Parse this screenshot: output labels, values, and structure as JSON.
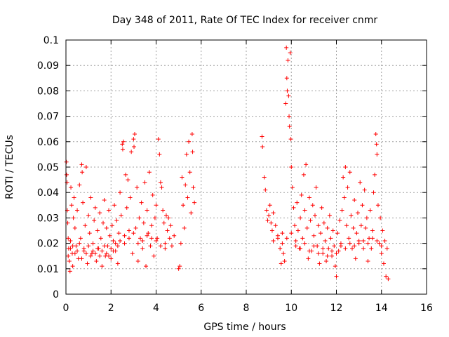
{
  "chart_data": {
    "type": "scatter",
    "title": "Day 348 of 2011, Rate Of TEC Index for receiver cnmr",
    "xlabel": "GPS time / hours",
    "ylabel": "ROTI / TECUs",
    "xlim": [
      0,
      16
    ],
    "ylim": [
      0,
      0.1
    ],
    "grid": true,
    "marker": "+",
    "marker_color": "#ff0000",
    "x_ticks": [
      0,
      2,
      4,
      6,
      8,
      10,
      12,
      14,
      16
    ],
    "x_tick_labels": [
      "0",
      "2",
      "4",
      "6",
      "8",
      "10",
      "12",
      "14",
      "16"
    ],
    "y_ticks": [
      0,
      0.01,
      0.02,
      0.03,
      0.04,
      0.05,
      0.06,
      0.07,
      0.08,
      0.09,
      0.1
    ],
    "y_tick_labels": [
      "0",
      "0.01",
      "0.02",
      "0.03",
      "0.04",
      "0.05",
      "0.06",
      "0.07",
      "0.08",
      "0.09",
      "0.1"
    ],
    "series": [
      {
        "name": "ROTI",
        "points": [
          [
            0.02,
            0.052
          ],
          [
            0.03,
            0.047
          ],
          [
            0.05,
            0.044
          ],
          [
            0.06,
            0.033
          ],
          [
            0.08,
            0.028
          ],
          [
            0.1,
            0.022
          ],
          [
            0.12,
            0.018
          ],
          [
            0.15,
            0.013
          ],
          [
            0.18,
            0.009
          ],
          [
            0.2,
            0.021
          ],
          [
            0.22,
            0.042
          ],
          [
            0.25,
            0.035
          ],
          [
            0.28,
            0.016
          ],
          [
            0.3,
            0.011
          ],
          [
            0.33,
            0.03
          ],
          [
            0.36,
            0.038
          ],
          [
            0.4,
            0.026
          ],
          [
            0.45,
            0.019
          ],
          [
            0.5,
            0.033
          ],
          [
            0.55,
            0.014
          ],
          [
            0.6,
            0.043
          ],
          [
            0.65,
            0.022
          ],
          [
            0.7,
            0.051
          ],
          [
            0.72,
            0.048
          ],
          [
            0.75,
            0.036
          ],
          [
            0.8,
            0.017
          ],
          [
            0.85,
            0.027
          ],
          [
            0.9,
            0.05
          ],
          [
            0.95,
            0.012
          ],
          [
            1.0,
            0.031
          ],
          [
            1.05,
            0.024
          ],
          [
            1.1,
            0.038
          ],
          [
            1.15,
            0.016
          ],
          [
            1.2,
            0.02
          ],
          [
            1.25,
            0.029
          ],
          [
            1.3,
            0.034
          ],
          [
            1.35,
            0.013
          ],
          [
            1.4,
            0.025
          ],
          [
            1.45,
            0.018
          ],
          [
            1.5,
            0.032
          ],
          [
            1.55,
            0.022
          ],
          [
            1.6,
            0.011
          ],
          [
            1.65,
            0.028
          ],
          [
            1.7,
            0.037
          ],
          [
            1.75,
            0.015
          ],
          [
            1.8,
            0.026
          ],
          [
            1.85,
            0.019
          ],
          [
            1.9,
            0.033
          ],
          [
            1.95,
            0.023
          ],
          [
            2.0,
            0.014
          ],
          [
            2.05,
            0.027
          ],
          [
            2.1,
            0.021
          ],
          [
            2.15,
            0.035
          ],
          [
            2.2,
            0.017
          ],
          [
            2.25,
            0.029
          ],
          [
            2.3,
            0.012
          ],
          [
            2.35,
            0.024
          ],
          [
            2.4,
            0.04
          ],
          [
            2.45,
            0.031
          ],
          [
            2.5,
            0.059
          ],
          [
            2.52,
            0.057
          ],
          [
            2.55,
            0.06
          ],
          [
            2.6,
            0.02
          ],
          [
            2.65,
            0.047
          ],
          [
            2.7,
            0.034
          ],
          [
            2.75,
            0.045
          ],
          [
            2.8,
            0.025
          ],
          [
            2.85,
            0.038
          ],
          [
            2.9,
            0.056
          ],
          [
            2.95,
            0.016
          ],
          [
            3.0,
            0.061
          ],
          [
            3.02,
            0.058
          ],
          [
            3.05,
            0.063
          ],
          [
            3.1,
            0.026
          ],
          [
            3.15,
            0.042
          ],
          [
            3.2,
            0.013
          ],
          [
            3.25,
            0.03
          ],
          [
            3.3,
            0.022
          ],
          [
            3.35,
            0.036
          ],
          [
            3.4,
            0.018
          ],
          [
            3.45,
            0.028
          ],
          [
            3.5,
            0.044
          ],
          [
            3.55,
            0.011
          ],
          [
            3.6,
            0.033
          ],
          [
            3.65,
            0.024
          ],
          [
            3.7,
            0.048
          ],
          [
            3.75,
            0.019
          ],
          [
            3.8,
            0.027
          ],
          [
            3.85,
            0.039
          ],
          [
            3.9,
            0.015
          ],
          [
            3.95,
            0.03
          ],
          [
            4.0,
            0.035
          ],
          [
            4.05,
            0.022
          ],
          [
            4.1,
            0.061
          ],
          [
            4.15,
            0.055
          ],
          [
            4.2,
            0.044
          ],
          [
            4.25,
            0.042
          ],
          [
            4.3,
            0.033
          ],
          [
            4.35,
            0.028
          ],
          [
            4.4,
            0.018
          ],
          [
            4.45,
            0.031
          ],
          [
            4.5,
            0.025
          ],
          [
            4.55,
            0.03
          ],
          [
            4.6,
            0.022
          ],
          [
            4.65,
            0.027
          ],
          [
            4.7,
            0.019
          ],
          [
            4.8,
            0.023
          ],
          [
            5.0,
            0.01
          ],
          [
            5.05,
            0.011
          ],
          [
            5.1,
            0.02
          ],
          [
            5.15,
            0.046
          ],
          [
            5.2,
            0.035
          ],
          [
            5.25,
            0.026
          ],
          [
            5.3,
            0.043
          ],
          [
            5.35,
            0.055
          ],
          [
            5.4,
            0.038
          ],
          [
            5.45,
            0.06
          ],
          [
            5.5,
            0.048
          ],
          [
            5.55,
            0.032
          ],
          [
            5.6,
            0.063
          ],
          [
            5.62,
            0.056
          ],
          [
            5.65,
            0.042
          ],
          [
            5.7,
            0.036
          ],
          [
            0.1,
            0.015
          ],
          [
            0.2,
            0.018
          ],
          [
            0.3,
            0.019
          ],
          [
            0.4,
            0.016
          ],
          [
            0.5,
            0.017
          ],
          [
            0.6,
            0.02
          ],
          [
            0.7,
            0.014
          ],
          [
            0.8,
            0.018
          ],
          [
            0.9,
            0.016
          ],
          [
            1.0,
            0.019
          ],
          [
            1.1,
            0.015
          ],
          [
            1.2,
            0.017
          ],
          [
            1.3,
            0.016
          ],
          [
            1.4,
            0.018
          ],
          [
            1.5,
            0.015
          ],
          [
            1.6,
            0.017
          ],
          [
            1.7,
            0.019
          ],
          [
            1.8,
            0.016
          ],
          [
            1.9,
            0.015
          ],
          [
            2.0,
            0.018
          ],
          [
            2.1,
            0.017
          ],
          [
            2.2,
            0.02
          ],
          [
            2.3,
            0.019
          ],
          [
            2.4,
            0.021
          ],
          [
            2.6,
            0.023
          ],
          [
            2.8,
            0.022
          ],
          [
            3.0,
            0.024
          ],
          [
            3.2,
            0.02
          ],
          [
            3.4,
            0.021
          ],
          [
            3.6,
            0.023
          ],
          [
            3.8,
            0.022
          ],
          [
            4.0,
            0.021
          ],
          [
            4.2,
            0.019
          ],
          [
            4.4,
            0.02
          ],
          [
            8.7,
            0.062
          ],
          [
            8.72,
            0.058
          ],
          [
            8.8,
            0.046
          ],
          [
            8.85,
            0.041
          ],
          [
            8.9,
            0.033
          ],
          [
            8.95,
            0.029
          ],
          [
            9.0,
            0.031
          ],
          [
            9.05,
            0.035
          ],
          [
            9.1,
            0.028
          ],
          [
            9.15,
            0.025
          ],
          [
            9.2,
            0.032
          ],
          [
            9.3,
            0.027
          ],
          [
            9.4,
            0.022
          ],
          [
            9.5,
            0.018
          ],
          [
            9.55,
            0.012
          ],
          [
            9.6,
            0.024
          ],
          [
            9.65,
            0.016
          ],
          [
            9.7,
            0.013
          ],
          [
            9.75,
            0.075
          ],
          [
            9.78,
            0.097
          ],
          [
            9.8,
            0.085
          ],
          [
            9.82,
            0.08
          ],
          [
            9.85,
            0.092
          ],
          [
            9.88,
            0.078
          ],
          [
            9.9,
            0.07
          ],
          [
            9.92,
            0.066
          ],
          [
            9.95,
            0.095
          ],
          [
            9.98,
            0.061
          ],
          [
            10.0,
            0.05
          ],
          [
            10.05,
            0.042
          ],
          [
            10.1,
            0.034
          ],
          [
            10.15,
            0.027
          ],
          [
            10.2,
            0.021
          ],
          [
            10.25,
            0.036
          ],
          [
            10.3,
            0.025
          ],
          [
            10.35,
            0.018
          ],
          [
            10.4,
            0.03
          ],
          [
            10.45,
            0.039
          ],
          [
            10.5,
            0.022
          ],
          [
            10.55,
            0.047
          ],
          [
            10.6,
            0.033
          ],
          [
            10.65,
            0.051
          ],
          [
            10.7,
            0.026
          ],
          [
            10.75,
            0.014
          ],
          [
            10.8,
            0.038
          ],
          [
            10.85,
            0.029
          ],
          [
            10.9,
            0.017
          ],
          [
            10.95,
            0.035
          ],
          [
            11.0,
            0.023
          ],
          [
            11.05,
            0.031
          ],
          [
            11.1,
            0.042
          ],
          [
            11.15,
            0.019
          ],
          [
            11.2,
            0.027
          ],
          [
            11.25,
            0.012
          ],
          [
            11.3,
            0.024
          ],
          [
            11.35,
            0.034
          ],
          [
            11.4,
            0.016
          ],
          [
            11.45,
            0.028
          ],
          [
            11.5,
            0.021
          ],
          [
            11.55,
            0.013
          ],
          [
            11.6,
            0.026
          ],
          [
            11.65,
            0.018
          ],
          [
            11.7,
            0.031
          ],
          [
            11.75,
            0.022
          ],
          [
            11.8,
            0.015
          ],
          [
            11.85,
            0.025
          ],
          [
            11.9,
            0.019
          ],
          [
            11.95,
            0.011
          ],
          [
            12.0,
            0.007
          ],
          [
            12.05,
            0.024
          ],
          [
            12.1,
            0.017
          ],
          [
            12.15,
            0.029
          ],
          [
            12.2,
            0.02
          ],
          [
            12.25,
            0.033
          ],
          [
            12.3,
            0.046
          ],
          [
            12.35,
            0.038
          ],
          [
            12.4,
            0.05
          ],
          [
            12.45,
            0.027
          ],
          [
            12.5,
            0.042
          ],
          [
            12.55,
            0.022
          ],
          [
            12.6,
            0.048
          ],
          [
            12.65,
            0.031
          ],
          [
            12.7,
            0.018
          ],
          [
            12.75,
            0.026
          ],
          [
            12.8,
            0.037
          ],
          [
            12.85,
            0.014
          ],
          [
            12.9,
            0.024
          ],
          [
            12.95,
            0.032
          ],
          [
            13.0,
            0.021
          ],
          [
            13.05,
            0.044
          ],
          [
            13.1,
            0.027
          ],
          [
            13.15,
            0.035
          ],
          [
            13.2,
            0.018
          ],
          [
            13.25,
            0.041
          ],
          [
            13.3,
            0.026
          ],
          [
            13.35,
            0.03
          ],
          [
            13.4,
            0.013
          ],
          [
            13.45,
            0.022
          ],
          [
            13.5,
            0.033
          ],
          [
            13.55,
            0.018
          ],
          [
            13.6,
            0.025
          ],
          [
            13.65,
            0.04
          ],
          [
            13.7,
            0.047
          ],
          [
            13.75,
            0.063
          ],
          [
            13.78,
            0.059
          ],
          [
            13.8,
            0.055
          ],
          [
            13.85,
            0.035
          ],
          [
            13.9,
            0.02
          ],
          [
            13.95,
            0.03
          ],
          [
            14.0,
            0.016
          ],
          [
            14.05,
            0.025
          ],
          [
            14.1,
            0.012
          ],
          [
            14.15,
            0.021
          ],
          [
            14.2,
            0.007
          ],
          [
            14.25,
            0.018
          ],
          [
            14.3,
            0.006
          ],
          [
            9.2,
            0.021
          ],
          [
            9.4,
            0.023
          ],
          [
            9.6,
            0.02
          ],
          [
            9.8,
            0.022
          ],
          [
            10.0,
            0.024
          ],
          [
            10.2,
            0.019
          ],
          [
            10.4,
            0.018
          ],
          [
            10.6,
            0.02
          ],
          [
            10.8,
            0.017
          ],
          [
            11.0,
            0.019
          ],
          [
            11.2,
            0.016
          ],
          [
            11.4,
            0.018
          ],
          [
            11.6,
            0.015
          ],
          [
            11.8,
            0.017
          ],
          [
            12.0,
            0.016
          ],
          [
            12.2,
            0.019
          ],
          [
            12.4,
            0.018
          ],
          [
            12.6,
            0.02
          ],
          [
            12.8,
            0.019
          ],
          [
            13.0,
            0.02
          ],
          [
            13.2,
            0.021
          ],
          [
            13.4,
            0.02
          ],
          [
            13.6,
            0.022
          ],
          [
            13.8,
            0.021
          ],
          [
            14.0,
            0.019
          ]
        ]
      }
    ]
  }
}
